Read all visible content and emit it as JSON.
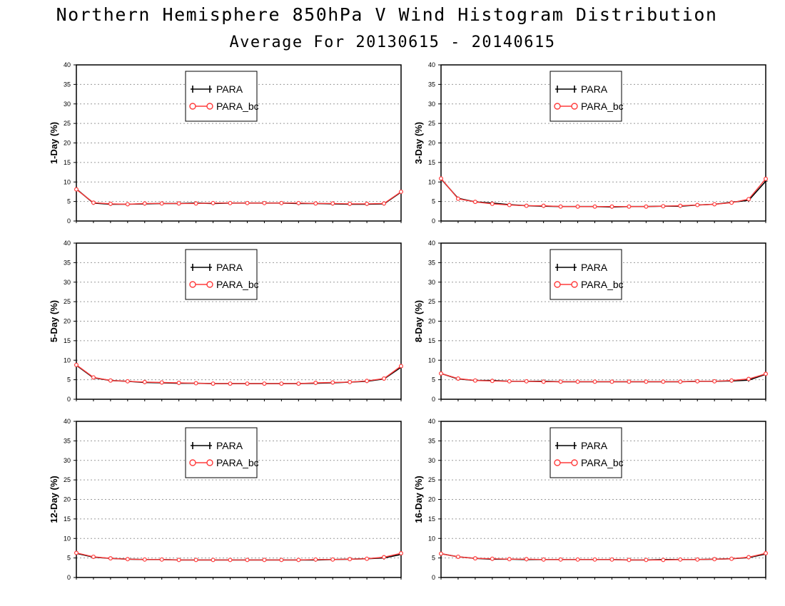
{
  "title": "Northern Hemisphere 850hPa V Wind Histogram Distribution",
  "subtitle": "Average For 20130615 - 20140615",
  "colors": {
    "PARA": "#000000",
    "PARA_bc": "#ff3b3b",
    "grid": "#9a9a9a"
  },
  "chart_data": [
    {
      "type": "line",
      "ylabel": "1-Day (%)",
      "ylim": [
        0,
        40
      ],
      "yticks": [
        "0",
        "5",
        "10",
        "15",
        "20",
        "25",
        "30",
        "35",
        "40"
      ],
      "grid": true,
      "legend": "top-center",
      "series": [
        {
          "name": "PARA",
          "marker": "plus",
          "values": [
            8.2,
            4.6,
            4.3,
            4.3,
            4.4,
            4.5,
            4.5,
            4.6,
            4.5,
            4.6,
            4.6,
            4.6,
            4.6,
            4.5,
            4.5,
            4.4,
            4.3,
            4.3,
            4.4,
            7.4
          ]
        },
        {
          "name": "PARA_bc",
          "marker": "circle",
          "values": [
            8.1,
            4.7,
            4.4,
            4.3,
            4.5,
            4.5,
            4.5,
            4.5,
            4.6,
            4.6,
            4.6,
            4.6,
            4.6,
            4.6,
            4.5,
            4.5,
            4.4,
            4.4,
            4.5,
            7.5
          ]
        }
      ]
    },
    {
      "type": "line",
      "ylabel": "3-Day (%)",
      "ylim": [
        0,
        40
      ],
      "yticks": [
        "0",
        "5",
        "10",
        "15",
        "20",
        "25",
        "30",
        "35",
        "40"
      ],
      "grid": true,
      "legend": "top-center",
      "series": [
        {
          "name": "PARA",
          "marker": "plus",
          "values": [
            10.8,
            5.8,
            4.9,
            4.6,
            4.2,
            3.9,
            3.8,
            3.7,
            3.7,
            3.7,
            3.6,
            3.7,
            3.7,
            3.8,
            3.8,
            4.1,
            4.3,
            4.8,
            5.3,
            10.2
          ]
        },
        {
          "name": "PARA_bc",
          "marker": "circle",
          "values": [
            10.9,
            5.7,
            4.9,
            4.4,
            4.1,
            3.9,
            3.9,
            3.7,
            3.7,
            3.7,
            3.7,
            3.7,
            3.7,
            3.8,
            3.9,
            4.1,
            4.3,
            4.7,
            5.6,
            10.8
          ]
        }
      ]
    },
    {
      "type": "line",
      "ylabel": "5-Day (%)",
      "ylim": [
        0,
        40
      ],
      "yticks": [
        "0",
        "5",
        "10",
        "15",
        "20",
        "25",
        "30",
        "35",
        "40"
      ],
      "grid": true,
      "legend": "top-center",
      "series": [
        {
          "name": "PARA",
          "marker": "plus",
          "values": [
            8.7,
            5.5,
            4.8,
            4.6,
            4.3,
            4.2,
            4.1,
            4.1,
            4.0,
            4.0,
            4.0,
            4.0,
            4.0,
            4.0,
            4.1,
            4.2,
            4.4,
            4.6,
            5.2,
            8.2
          ]
        },
        {
          "name": "PARA_bc",
          "marker": "circle",
          "values": [
            8.8,
            5.6,
            4.8,
            4.6,
            4.4,
            4.3,
            4.2,
            4.1,
            4.0,
            4.0,
            4.0,
            4.0,
            4.0,
            4.0,
            4.2,
            4.3,
            4.4,
            4.7,
            5.3,
            8.5
          ]
        }
      ]
    },
    {
      "type": "line",
      "ylabel": "8-Day (%)",
      "ylim": [
        0,
        40
      ],
      "yticks": [
        "0",
        "5",
        "10",
        "15",
        "20",
        "25",
        "30",
        "35",
        "40"
      ],
      "grid": true,
      "legend": "top-center",
      "series": [
        {
          "name": "PARA",
          "marker": "plus",
          "values": [
            6.6,
            5.2,
            4.8,
            4.8,
            4.6,
            4.6,
            4.6,
            4.5,
            4.5,
            4.5,
            4.5,
            4.5,
            4.5,
            4.5,
            4.5,
            4.6,
            4.6,
            4.7,
            4.9,
            6.4
          ]
        },
        {
          "name": "PARA_bc",
          "marker": "circle",
          "values": [
            6.6,
            5.3,
            4.8,
            4.7,
            4.6,
            4.6,
            4.5,
            4.5,
            4.5,
            4.5,
            4.5,
            4.5,
            4.5,
            4.5,
            4.5,
            4.6,
            4.6,
            4.8,
            5.2,
            6.5
          ]
        }
      ]
    },
    {
      "type": "line",
      "ylabel": "12-Day (%)",
      "ylim": [
        0,
        40
      ],
      "yticks": [
        "0",
        "5",
        "10",
        "15",
        "20",
        "25",
        "30",
        "35",
        "40"
      ],
      "grid": true,
      "legend": "top-center",
      "series": [
        {
          "name": "PARA",
          "marker": "plus",
          "values": [
            6.2,
            5.2,
            4.9,
            4.7,
            4.6,
            4.6,
            4.5,
            4.5,
            4.5,
            4.5,
            4.5,
            4.5,
            4.5,
            4.5,
            4.5,
            4.6,
            4.7,
            4.8,
            5.0,
            5.9
          ]
        },
        {
          "name": "PARA_bc",
          "marker": "circle",
          "values": [
            6.3,
            5.3,
            4.9,
            4.7,
            4.6,
            4.6,
            4.5,
            4.5,
            4.5,
            4.5,
            4.5,
            4.5,
            4.5,
            4.5,
            4.6,
            4.6,
            4.7,
            4.8,
            5.2,
            6.2
          ]
        }
      ]
    },
    {
      "type": "line",
      "ylabel": "16-Day (%)",
      "ylim": [
        0,
        40
      ],
      "yticks": [
        "0",
        "5",
        "10",
        "15",
        "20",
        "25",
        "30",
        "35",
        "40"
      ],
      "grid": true,
      "legend": "top-center",
      "series": [
        {
          "name": "PARA",
          "marker": "plus",
          "values": [
            6.1,
            5.3,
            4.9,
            4.7,
            4.7,
            4.6,
            4.6,
            4.6,
            4.6,
            4.6,
            4.6,
            4.5,
            4.5,
            4.6,
            4.6,
            4.6,
            4.7,
            4.8,
            5.1,
            6.0
          ]
        },
        {
          "name": "PARA_bc",
          "marker": "circle",
          "values": [
            6.1,
            5.3,
            4.9,
            4.8,
            4.7,
            4.7,
            4.6,
            4.6,
            4.6,
            4.6,
            4.6,
            4.5,
            4.5,
            4.5,
            4.6,
            4.6,
            4.7,
            4.8,
            5.2,
            6.2
          ]
        }
      ]
    }
  ]
}
